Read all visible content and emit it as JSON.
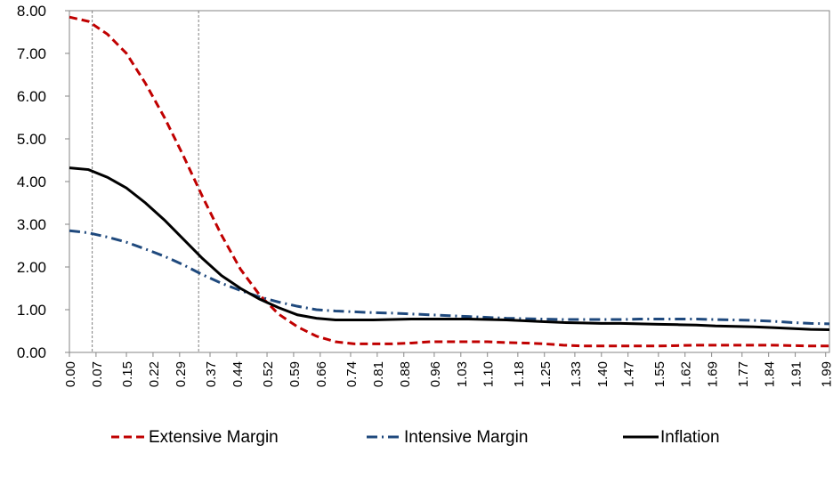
{
  "chart_data": {
    "type": "line",
    "x": [
      0,
      0.05,
      0.1,
      0.15,
      0.2,
      0.25,
      0.3,
      0.35,
      0.4,
      0.45,
      0.5,
      0.55,
      0.6,
      0.65,
      0.7,
      0.75,
      0.8,
      0.85,
      0.9,
      0.95,
      1.0,
      1.05,
      1.1,
      1.15,
      1.2,
      1.25,
      1.3,
      1.35,
      1.4,
      1.45,
      1.5,
      1.55,
      1.6,
      1.65,
      1.7,
      1.75,
      1.8,
      1.85,
      1.9,
      1.95,
      2.0
    ],
    "series": [
      {
        "name": "Extensive Margin",
        "color": "#c00000",
        "dash": "9,5",
        "values": [
          7.85,
          7.75,
          7.45,
          7.0,
          6.3,
          5.5,
          4.6,
          3.65,
          2.75,
          1.95,
          1.35,
          0.9,
          0.6,
          0.38,
          0.25,
          0.2,
          0.2,
          0.2,
          0.22,
          0.25,
          0.25,
          0.25,
          0.25,
          0.23,
          0.22,
          0.2,
          0.17,
          0.15,
          0.15,
          0.15,
          0.15,
          0.15,
          0.16,
          0.17,
          0.17,
          0.17,
          0.17,
          0.17,
          0.16,
          0.15,
          0.15
        ]
      },
      {
        "name": "Intensive Margin",
        "color": "#1f497d",
        "dash": "12,5,2,5",
        "values": [
          2.85,
          2.8,
          2.7,
          2.58,
          2.42,
          2.25,
          2.05,
          1.82,
          1.62,
          1.45,
          1.3,
          1.18,
          1.08,
          1.0,
          0.97,
          0.95,
          0.93,
          0.92,
          0.9,
          0.88,
          0.86,
          0.84,
          0.82,
          0.8,
          0.79,
          0.78,
          0.77,
          0.77,
          0.77,
          0.77,
          0.78,
          0.78,
          0.78,
          0.78,
          0.77,
          0.76,
          0.75,
          0.73,
          0.7,
          0.68,
          0.67
        ]
      },
      {
        "name": "Inflation",
        "color": "#000000",
        "dash": "none",
        "values": [
          4.32,
          4.28,
          4.1,
          3.85,
          3.5,
          3.1,
          2.65,
          2.2,
          1.8,
          1.5,
          1.25,
          1.05,
          0.88,
          0.8,
          0.76,
          0.76,
          0.76,
          0.77,
          0.78,
          0.78,
          0.78,
          0.78,
          0.77,
          0.76,
          0.74,
          0.72,
          0.7,
          0.69,
          0.68,
          0.68,
          0.67,
          0.66,
          0.65,
          0.64,
          0.62,
          0.61,
          0.6,
          0.58,
          0.56,
          0.54,
          0.53
        ]
      }
    ],
    "vlines": [
      0.06,
      0.34
    ],
    "xlim": [
      0,
      2.0
    ],
    "xticks": [
      {
        "value": 0,
        "label": "0.00"
      },
      0.07,
      0.15,
      0.22,
      0.29,
      0.37,
      0.44,
      0.52,
      0.59,
      0.66,
      0.74,
      0.81,
      0.88,
      0.96,
      1.03,
      {
        "value": 1.1,
        "label": "1.10"
      },
      1.18,
      1.25,
      1.33,
      {
        "value": 1.4,
        "label": "1.40"
      },
      1.47,
      1.55,
      1.62,
      1.69,
      1.77,
      1.84,
      1.91,
      1.99
    ],
    "ylim": [
      0,
      8
    ],
    "yticks": [
      {
        "value": 0,
        "label": "0.00"
      },
      {
        "value": 1,
        "label": "1.00"
      },
      {
        "value": 2,
        "label": "2.00"
      },
      {
        "value": 3,
        "label": "3.00"
      },
      {
        "value": 4,
        "label": "4.00"
      },
      {
        "value": 5,
        "label": "5.00"
      },
      {
        "value": 6,
        "label": "6.00"
      },
      {
        "value": 7,
        "label": "7.00"
      },
      {
        "value": 8,
        "label": "8.00"
      }
    ],
    "legend": "bottom"
  }
}
